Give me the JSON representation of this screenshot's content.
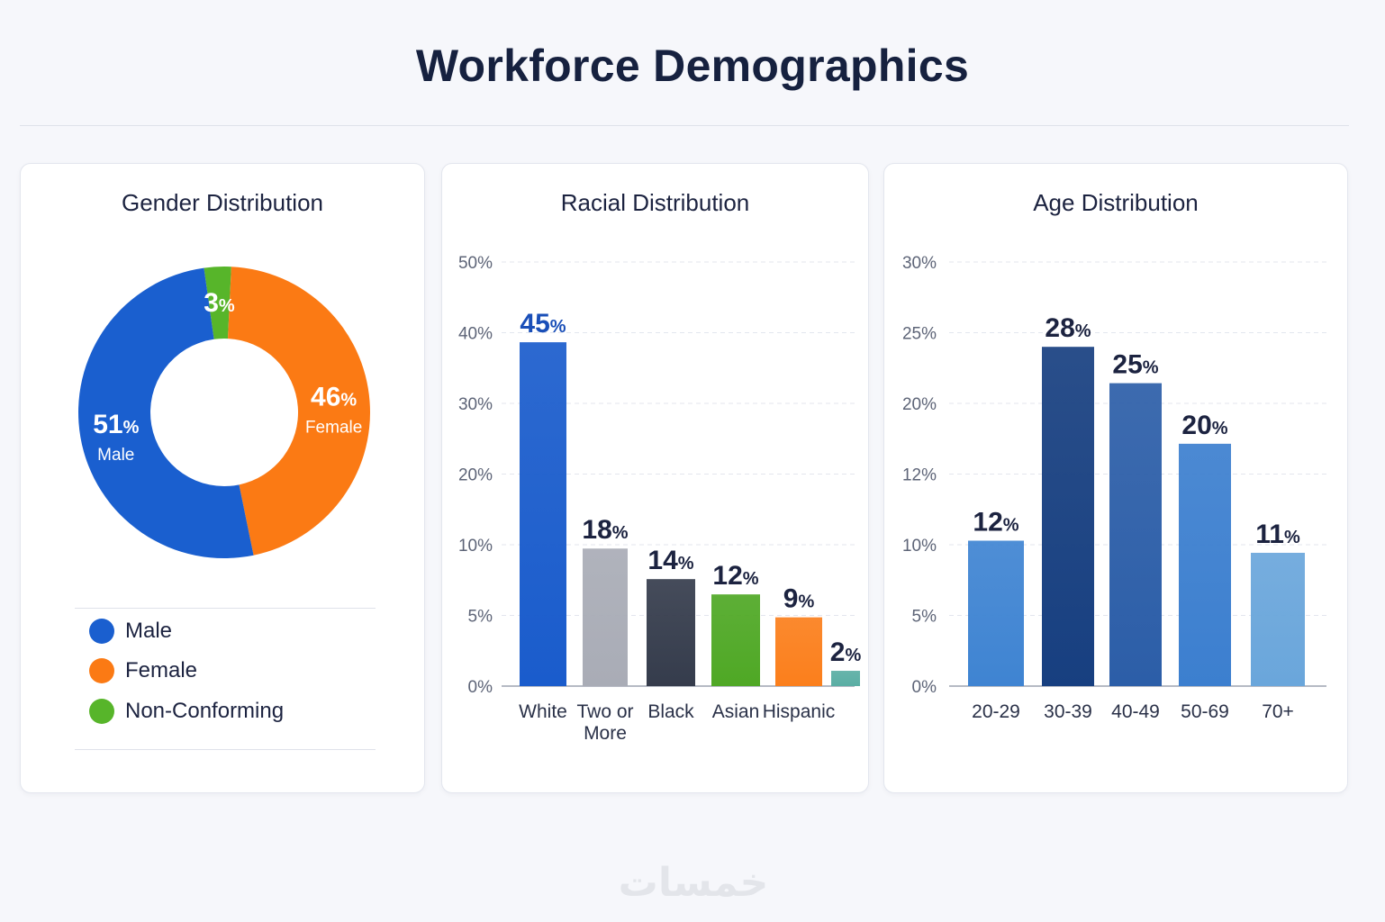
{
  "title": "Workforce Demographics",
  "watermark": "خمسات",
  "chart_data": [
    {
      "type": "pie",
      "title": "Gender Distribution",
      "slices": [
        {
          "name": "Male",
          "value": 51,
          "label": "51%",
          "sublabel": "Male",
          "color": "#1a5fcf"
        },
        {
          "name": "Female",
          "value": 46,
          "label": "46%",
          "sublabel": "Female",
          "color": "#fb7a14"
        },
        {
          "name": "Non-Conforming",
          "value": 3,
          "label": "3%",
          "sublabel": "",
          "color": "#57b52a"
        }
      ],
      "legend": [
        "Male",
        "Female",
        "Non-Conforming"
      ]
    },
    {
      "type": "bar",
      "title": "Racial Distribution",
      "yticks": [
        "0%",
        "5%",
        "10%",
        "20%",
        "30%",
        "40%",
        "50%"
      ],
      "categories": [
        "White",
        "Two or More",
        "Black",
        "Asian",
        "Hispanic",
        ""
      ],
      "values": [
        45,
        18,
        14,
        12,
        9,
        2
      ],
      "labels": [
        "45",
        "18",
        "14",
        "12",
        "9",
        "2"
      ],
      "colors": [
        "#1a5ccc",
        "#a9acb6",
        "#353c4c",
        "#4fa825",
        "#fb7f1c",
        "#5aaea4"
      ]
    },
    {
      "type": "bar",
      "title": "Age Distribution",
      "yticks": [
        "0%",
        "5%",
        "10%",
        "12%",
        "20%",
        "25%",
        "30%"
      ],
      "categories": [
        "20-29",
        "30-39",
        "40-49",
        "50-69",
        "70+"
      ],
      "values": [
        12,
        28,
        25,
        20,
        11
      ],
      "labels": [
        "12",
        "28",
        "25",
        "20",
        "11"
      ],
      "colors": [
        "#3f84d2",
        "#173f80",
        "#2c5ea8",
        "#3c7fcf",
        "#6aa6db"
      ]
    }
  ]
}
